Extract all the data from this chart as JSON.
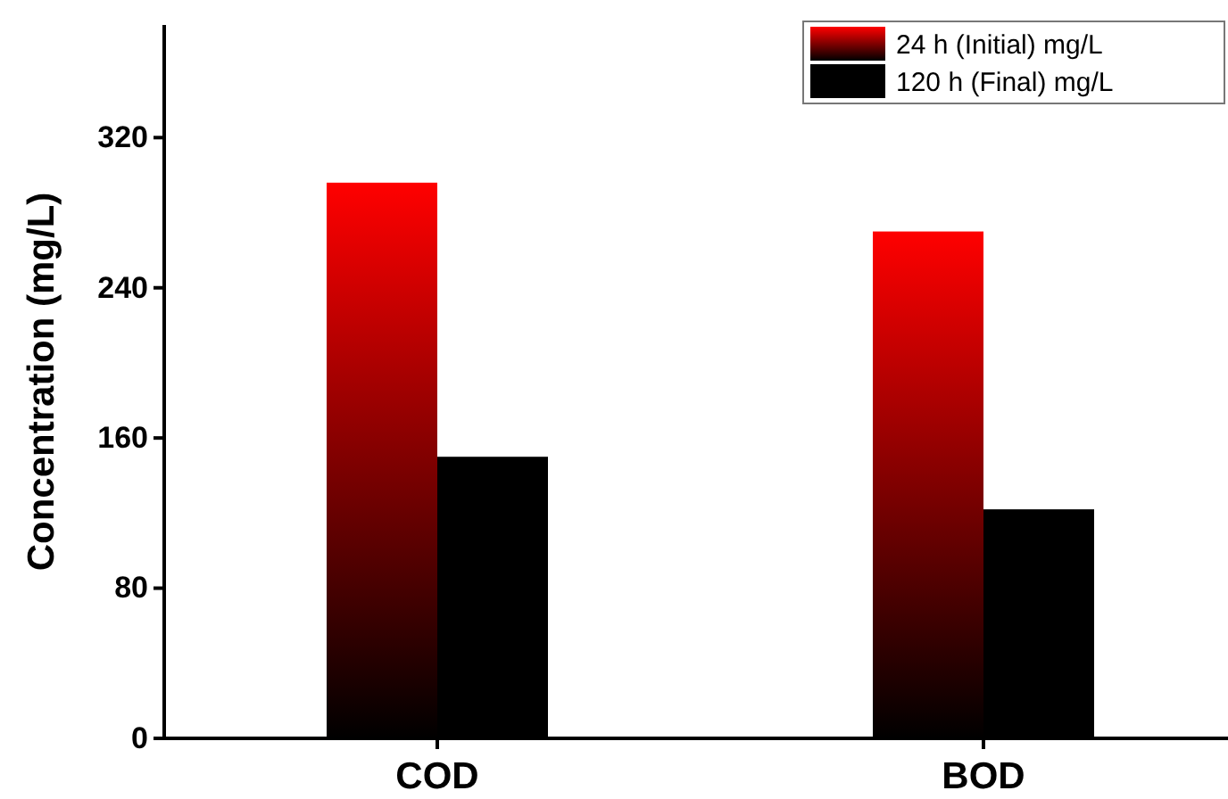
{
  "chart_data": {
    "type": "bar",
    "ylabel": "Concentration (mg/L)",
    "categories": [
      "COD",
      "BOD"
    ],
    "series": [
      {
        "name": "24 h (Initial) mg/L",
        "color": "#ff0000",
        "values": [
          296,
          270
        ]
      },
      {
        "name": "120 h (Final) mg/L",
        "color": "#000000",
        "values": [
          150,
          122
        ]
      }
    ],
    "ylim": [
      0,
      380
    ],
    "yticks": [
      0,
      80,
      160,
      240,
      320
    ],
    "legend": "top right",
    "grid": false
  }
}
